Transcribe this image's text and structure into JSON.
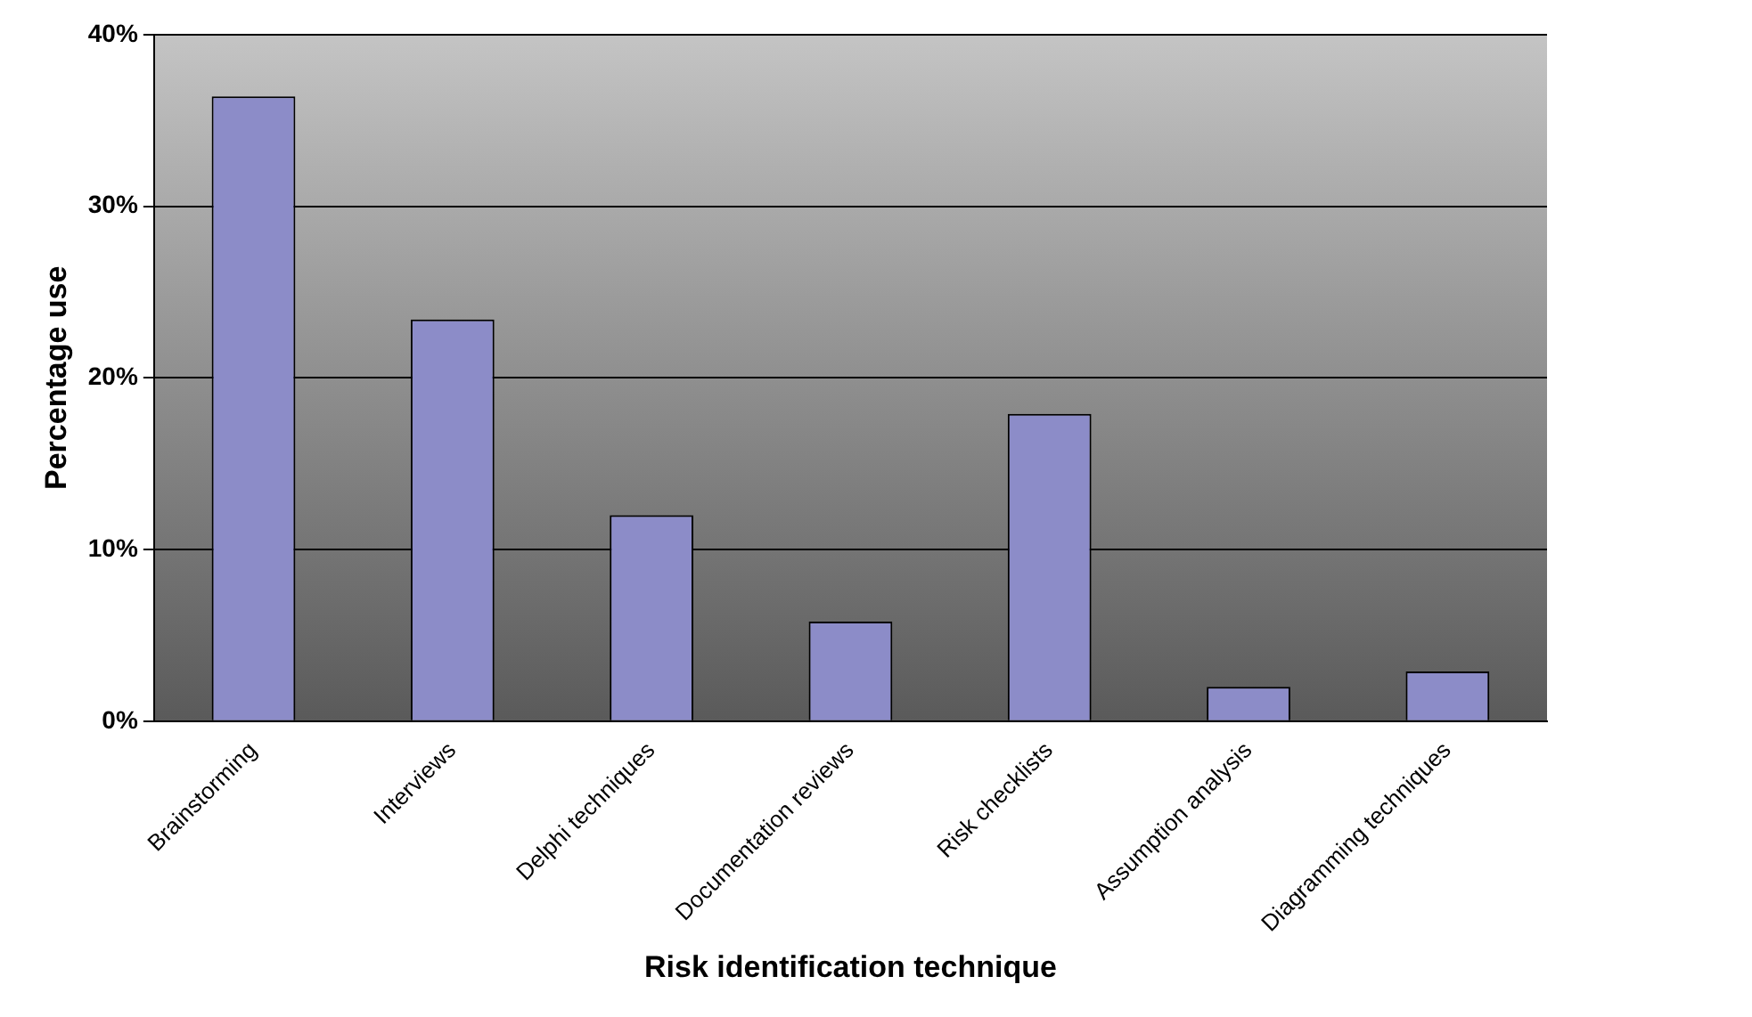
{
  "chart_data": {
    "type": "bar",
    "xlabel": "Risk identification technique",
    "ylabel": "Percentage use",
    "categories": [
      "Brainstorming",
      "Interviews",
      "Delphi techniques",
      "Documentation reviews",
      "Risk checklists",
      "Assumption analysis",
      "Diagramming techniques"
    ],
    "values": [
      36.4,
      23.4,
      12.0,
      5.8,
      17.9,
      2.0,
      2.9
    ],
    "color": "#8c8cc8",
    "ylim": [
      0,
      40
    ],
    "yticks": [
      {
        "value": 0,
        "label": "0%"
      },
      {
        "value": 10,
        "label": "10%"
      },
      {
        "value": 20,
        "label": "20%"
      },
      {
        "value": 30,
        "label": "30%"
      },
      {
        "value": 40,
        "label": "40%"
      }
    ],
    "grid": "y",
    "legend": false
  }
}
